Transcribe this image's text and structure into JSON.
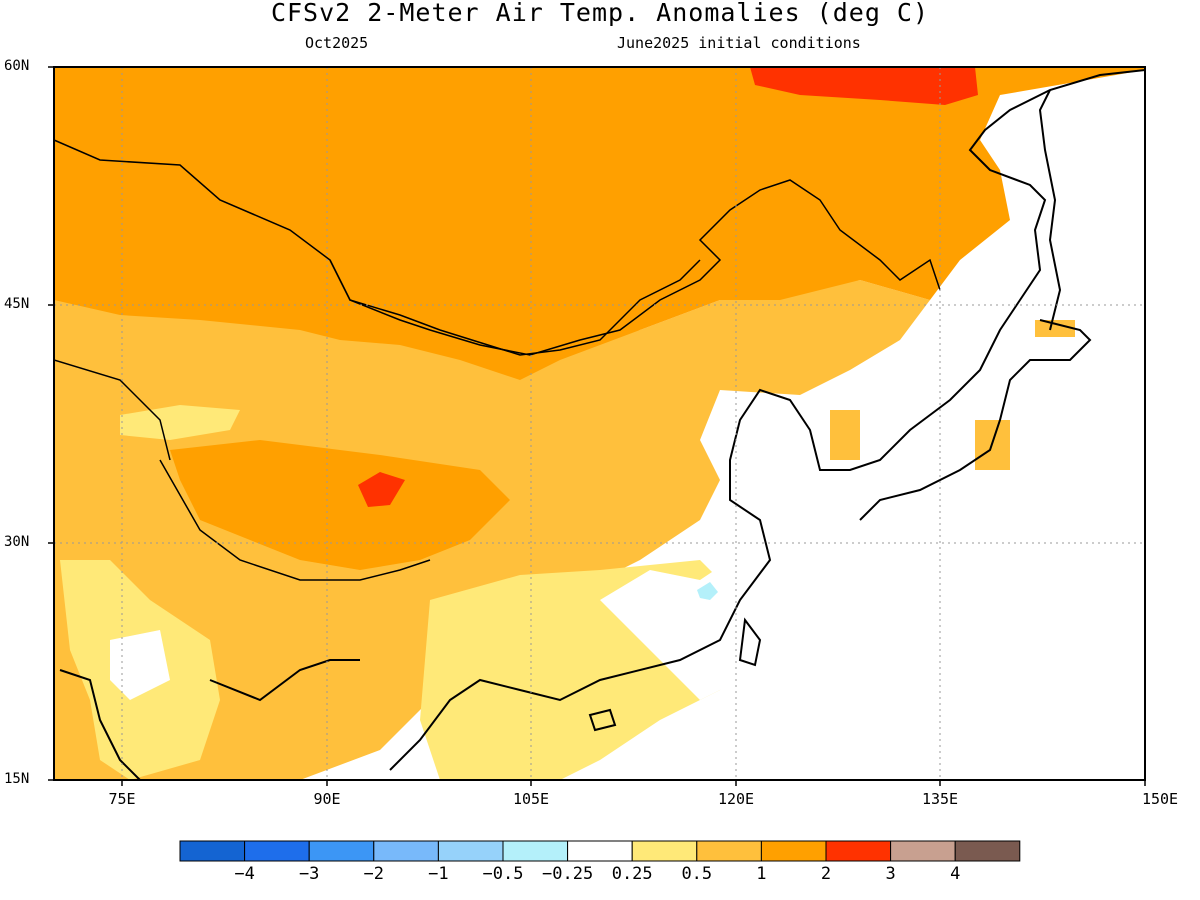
{
  "header": {
    "title": "CFSv2 2-Meter Air Temp. Anomalies (deg C)",
    "valid_month": "Oct2025",
    "initial_conditions": "June2025 initial conditions"
  },
  "map": {
    "lat_range": [
      15,
      60
    ],
    "lon_range": [
      70,
      150
    ],
    "lat_labels": [
      "60N",
      "45N",
      "30N",
      "15N"
    ],
    "lon_labels": [
      "75E",
      "90E",
      "105E",
      "120E",
      "135E",
      "150E"
    ],
    "gridlines": "dotted",
    "anomaly_regions": [
      {
        "region": "Siberia / northern Mongolia / NE China",
        "level": "1 to 2"
      },
      {
        "region": "Far eastern Siberia (north edge)",
        "level": "2 to 3"
      },
      {
        "region": "Tibetan Plateau hot spot",
        "level": "2 to 3"
      },
      {
        "region": "Central/Western China, Tibet",
        "level": "0.5 to 1"
      },
      {
        "region": "Southern China / Indochina",
        "level": "0.25 to 0.5"
      },
      {
        "region": "Southeast China coast",
        "level": "-0.25 to 0.25"
      },
      {
        "region": "East China Sea small spot",
        "level": "-0.5 to -0.25"
      },
      {
        "region": "Japan / Korea / Pacific",
        "level": "-0.25 to 0.25"
      }
    ]
  },
  "colorbar": {
    "colors": [
      "#1464d2",
      "#1e6eeb",
      "#3c96f5",
      "#78b9fa",
      "#96d2fa",
      "#b4f0fa",
      "#ffffff",
      "#ffe978",
      "#ffc03c",
      "#ffa000",
      "#ff3200",
      "#c8a090",
      "#7a5a50"
    ],
    "labels": [
      "−4",
      "−3",
      "−2",
      "−1",
      "−0.5",
      "−0.25",
      "0.25",
      "0.5",
      "1",
      "2",
      "3",
      "4"
    ]
  }
}
